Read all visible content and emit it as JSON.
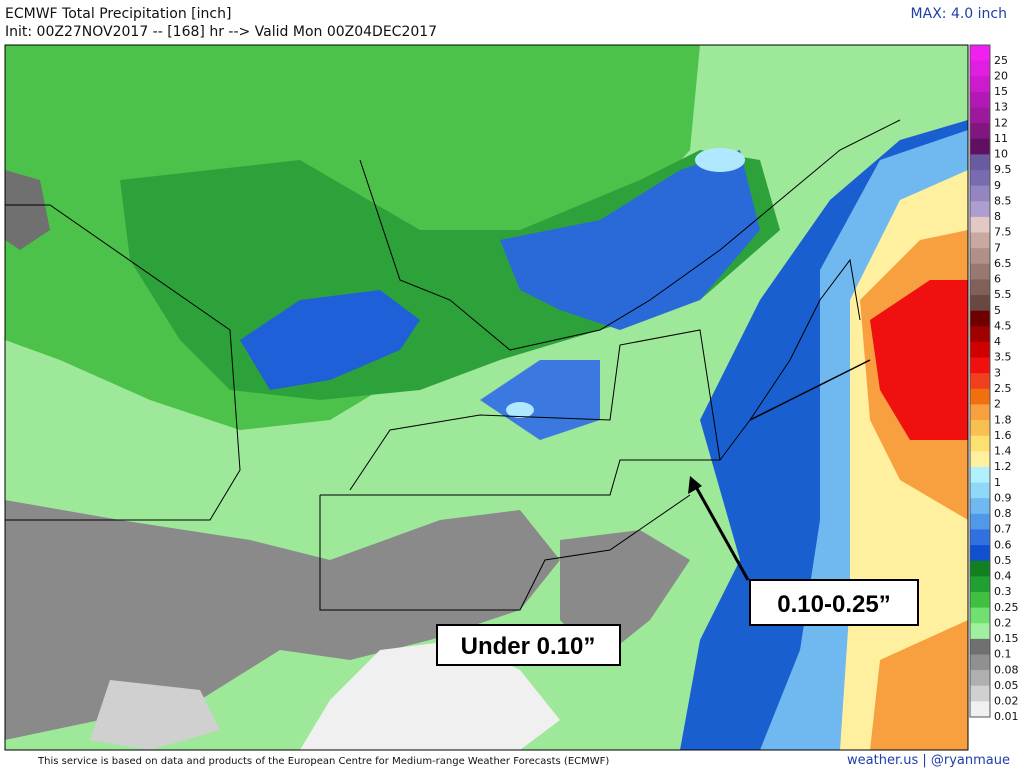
{
  "header": {
    "title": "ECMWF Total Precipitation [inch]",
    "init": "Init: 00Z27NOV2017 -- [168] hr --> Valid Mon 00Z04DEC2017",
    "max": "MAX: 4.0 inch"
  },
  "legend": {
    "items": [
      {
        "label": "25",
        "color": "#f020f0"
      },
      {
        "label": "20",
        "color": "#e01ee0"
      },
      {
        "label": "15",
        "color": "#cc1acc"
      },
      {
        "label": "13",
        "color": "#b418b4"
      },
      {
        "label": "12",
        "color": "#9c189c"
      },
      {
        "label": "11",
        "color": "#801680"
      },
      {
        "label": "10",
        "color": "#601060"
      },
      {
        "label": "9.5",
        "color": "#6a5aa0"
      },
      {
        "label": "9",
        "color": "#7a6ab0"
      },
      {
        "label": "8.5",
        "color": "#9484c0"
      },
      {
        "label": "8",
        "color": "#ae9ed0"
      },
      {
        "label": "7.5",
        "color": "#e4c8c4"
      },
      {
        "label": "7",
        "color": "#c8a8a0"
      },
      {
        "label": "6.5",
        "color": "#b09088"
      },
      {
        "label": "6",
        "color": "#987870"
      },
      {
        "label": "5.5",
        "color": "#806058"
      },
      {
        "label": "5",
        "color": "#684840"
      },
      {
        "label": "4.5",
        "color": "#700000"
      },
      {
        "label": "4",
        "color": "#a00000"
      },
      {
        "label": "3.5",
        "color": "#d00000"
      },
      {
        "label": "3",
        "color": "#f01010"
      },
      {
        "label": "2.5",
        "color": "#f04020"
      },
      {
        "label": "2",
        "color": "#f07010"
      },
      {
        "label": "1.8",
        "color": "#f8a040"
      },
      {
        "label": "1.6",
        "color": "#f8c050"
      },
      {
        "label": "1.4",
        "color": "#fce070"
      },
      {
        "label": "1.2",
        "color": "#fff0a0"
      },
      {
        "label": "1",
        "color": "#b0f0ff"
      },
      {
        "label": "0.9",
        "color": "#90d8f8"
      },
      {
        "label": "0.8",
        "color": "#70b8f0"
      },
      {
        "label": "0.7",
        "color": "#5098e8"
      },
      {
        "label": "0.6",
        "color": "#3070e0"
      },
      {
        "label": "0.5",
        "color": "#1050d0"
      },
      {
        "label": "0.4",
        "color": "#108020"
      },
      {
        "label": "0.3",
        "color": "#20a030"
      },
      {
        "label": "0.25",
        "color": "#40c040"
      },
      {
        "label": "0.2",
        "color": "#70e070"
      },
      {
        "label": "0.15",
        "color": "#a0f0a0"
      },
      {
        "label": "0.1",
        "color": "#707070"
      },
      {
        "label": "0.08",
        "color": "#909090"
      },
      {
        "label": "0.05",
        "color": "#b0b0b0"
      },
      {
        "label": "0.02",
        "color": "#d0d0d0"
      },
      {
        "label": "0.01",
        "color": "#f0f0f0"
      }
    ]
  },
  "annotations": {
    "coast": "0.10-0.25”",
    "inland": "Under 0.10”"
  },
  "footer": {
    "source": "This service is based on data and products of the European Centre for Medium-range Weather Forecasts (ECMWF)",
    "credit": "weather.us | @ryanmaue"
  }
}
